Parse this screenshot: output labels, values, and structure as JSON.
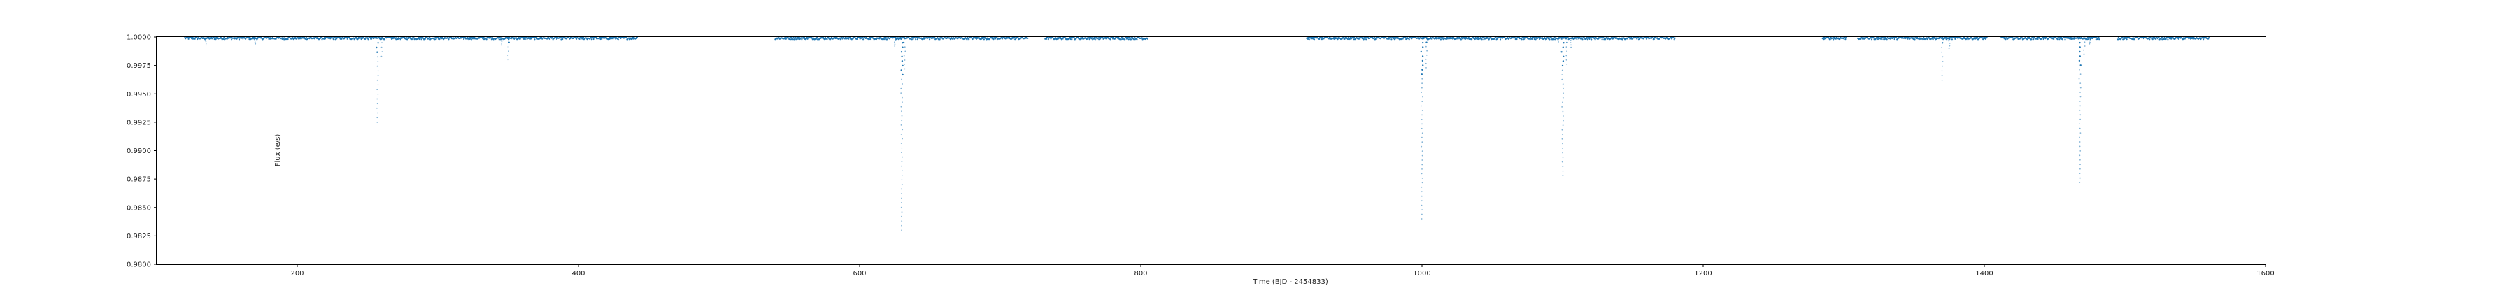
{
  "chart_data": {
    "type": "scatter",
    "xlabel": "Time (BJD - 2454833)",
    "ylabel": "Flux (e/s)",
    "xlim": [
      100,
      1600
    ],
    "ylim": [
      0.98,
      1.0
    ],
    "xticks": [
      200,
      400,
      600,
      800,
      1000,
      1200,
      1400,
      1600
    ],
    "yticks": [
      0.98,
      0.9825,
      0.985,
      0.9875,
      0.99,
      0.9925,
      0.995,
      0.9975,
      1.0
    ],
    "ytick_labels": [
      "0.9800",
      "0.9825",
      "0.9850",
      "0.9875",
      "0.9900",
      "0.9925",
      "0.9950",
      "0.9975",
      "1.0000"
    ],
    "grid": false,
    "series": [
      {
        "color": "#1f77b4",
        "marker": "point",
        "coverage_segments": [
          [
            120,
            442
          ],
          [
            540,
            720
          ],
          [
            732,
            805
          ],
          [
            918,
            1180
          ],
          [
            1285,
            1302
          ],
          [
            1310,
            1402
          ],
          [
            1412,
            1482
          ],
          [
            1495,
            1560
          ]
        ],
        "baseline_flux": 0.9999,
        "dips": [
          {
            "time": 135,
            "min_flux": 0.9993
          },
          {
            "time": 170,
            "min_flux": 0.9994
          },
          {
            "time": 257,
            "min_flux": 0.9925
          },
          {
            "time": 260,
            "min_flux": 0.9983
          },
          {
            "time": 345,
            "min_flux": 0.9993
          },
          {
            "time": 350,
            "min_flux": 0.998
          },
          {
            "time": 625,
            "min_flux": 0.9992
          },
          {
            "time": 630,
            "min_flux": 0.983
          },
          {
            "time": 632,
            "min_flux": 0.9972
          },
          {
            "time": 1000,
            "min_flux": 0.984
          },
          {
            "time": 1003,
            "min_flux": 0.9973
          },
          {
            "time": 1097,
            "min_flux": 0.9995
          },
          {
            "time": 1100,
            "min_flux": 0.9878
          },
          {
            "time": 1103,
            "min_flux": 0.9976
          },
          {
            "time": 1106,
            "min_flux": 0.9991
          },
          {
            "time": 1370,
            "min_flux": 0.9962
          },
          {
            "time": 1375,
            "min_flux": 0.999
          },
          {
            "time": 1468,
            "min_flux": 0.9872
          },
          {
            "time": 1471,
            "min_flux": 0.9985
          },
          {
            "time": 1475,
            "min_flux": 0.9994
          }
        ]
      }
    ]
  }
}
